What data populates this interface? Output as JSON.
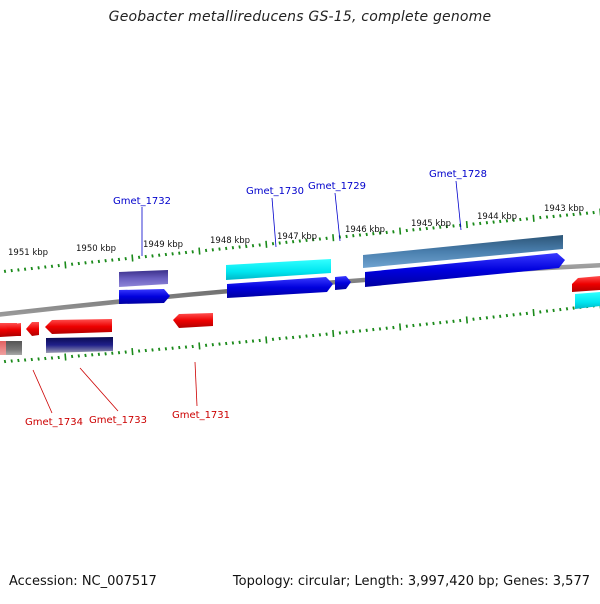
{
  "title": "Geobacter metallireducens GS-15, complete genome",
  "footer": {
    "accession": "Accession: NC_007517",
    "summary": "Topology: circular; Length: 3,997,420 bp; Genes: 3,577"
  },
  "scale_labels": [
    "1951 kbp",
    "1950 kbp",
    "1949 kbp",
    "1948 kbp",
    "1947 kbp",
    "1946 kbp",
    "1945 kbp",
    "1944 kbp",
    "1943 kbp"
  ],
  "colors": {
    "backbone": "#808080",
    "tick": "#1a8a1a",
    "label_forward": "#0000cc",
    "label_reverse": "#cc0000"
  },
  "gene_labels": {
    "forward": [
      "Gmet_1732",
      "Gmet_1730",
      "Gmet_1729",
      "Gmet_1728"
    ],
    "reverse": [
      "Gmet_1734",
      "Gmet_1733",
      "Gmet_1731"
    ]
  }
}
